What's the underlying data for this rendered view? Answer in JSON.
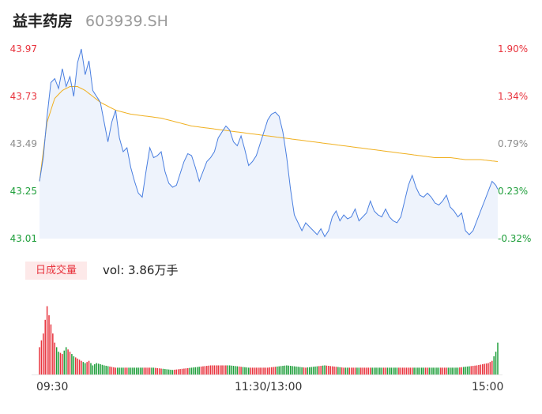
{
  "header": {
    "name": "益丰药房",
    "code": "603939.SH"
  },
  "axis": {
    "price_ticks": [
      "43.97",
      "43.73",
      "43.49",
      "43.25",
      "43.01"
    ],
    "pct_ticks": [
      "1.90%",
      "1.34%",
      "0.79%",
      "0.23%",
      "-0.32%"
    ],
    "time_ticks": [
      "09:30",
      "11:30/13:00",
      "15:00"
    ]
  },
  "volume_panel": {
    "tag": "日成交量",
    "vol_text": "vol: 3.86万手"
  },
  "colors": {
    "up": "#e8333d",
    "down": "#1e9e3a",
    "price": "#4a7fe0",
    "avg": "#f0b020",
    "fill": "#eef3fc"
  },
  "chart_data": {
    "type": "line",
    "ylim": [
      43.01,
      43.97
    ],
    "x_count": 242,
    "price_keys": [
      [
        0,
        43.3
      ],
      [
        2,
        43.42
      ],
      [
        4,
        43.63
      ],
      [
        6,
        43.8
      ],
      [
        8,
        43.82
      ],
      [
        10,
        43.77
      ],
      [
        12,
        43.87
      ],
      [
        14,
        43.78
      ],
      [
        16,
        43.83
      ],
      [
        18,
        43.73
      ],
      [
        20,
        43.9
      ],
      [
        22,
        43.97
      ],
      [
        24,
        43.84
      ],
      [
        26,
        43.91
      ],
      [
        28,
        43.76
      ],
      [
        30,
        43.73
      ],
      [
        32,
        43.7
      ],
      [
        34,
        43.6
      ],
      [
        36,
        43.5
      ],
      [
        38,
        43.6
      ],
      [
        40,
        43.66
      ],
      [
        42,
        43.52
      ],
      [
        44,
        43.45
      ],
      [
        46,
        43.47
      ],
      [
        48,
        43.37
      ],
      [
        50,
        43.3
      ],
      [
        52,
        43.24
      ],
      [
        54,
        43.22
      ],
      [
        56,
        43.35
      ],
      [
        58,
        43.47
      ],
      [
        60,
        43.42
      ],
      [
        62,
        43.43
      ],
      [
        64,
        43.45
      ],
      [
        66,
        43.35
      ],
      [
        68,
        43.29
      ],
      [
        70,
        43.27
      ],
      [
        72,
        43.28
      ],
      [
        74,
        43.34
      ],
      [
        76,
        43.4
      ],
      [
        78,
        43.44
      ],
      [
        80,
        43.43
      ],
      [
        82,
        43.37
      ],
      [
        84,
        43.3
      ],
      [
        86,
        43.35
      ],
      [
        88,
        43.4
      ],
      [
        90,
        43.42
      ],
      [
        92,
        43.45
      ],
      [
        94,
        43.52
      ],
      [
        96,
        43.55
      ],
      [
        98,
        43.58
      ],
      [
        100,
        43.56
      ],
      [
        102,
        43.5
      ],
      [
        104,
        43.48
      ],
      [
        106,
        43.53
      ],
      [
        108,
        43.46
      ],
      [
        110,
        43.38
      ],
      [
        112,
        43.4
      ],
      [
        114,
        43.43
      ],
      [
        116,
        43.49
      ],
      [
        118,
        43.55
      ],
      [
        120,
        43.61
      ],
      [
        122,
        43.64
      ],
      [
        124,
        43.65
      ],
      [
        126,
        43.63
      ],
      [
        128,
        43.55
      ],
      [
        130,
        43.42
      ],
      [
        132,
        43.26
      ],
      [
        134,
        43.13
      ],
      [
        136,
        43.09
      ],
      [
        138,
        43.05
      ],
      [
        140,
        43.09
      ],
      [
        142,
        43.07
      ],
      [
        144,
        43.05
      ],
      [
        146,
        43.03
      ],
      [
        148,
        43.06
      ],
      [
        150,
        43.02
      ],
      [
        152,
        43.05
      ],
      [
        154,
        43.12
      ],
      [
        156,
        43.15
      ],
      [
        158,
        43.1
      ],
      [
        160,
        43.13
      ],
      [
        162,
        43.11
      ],
      [
        164,
        43.12
      ],
      [
        166,
        43.16
      ],
      [
        168,
        43.1
      ],
      [
        170,
        43.12
      ],
      [
        172,
        43.14
      ],
      [
        174,
        43.2
      ],
      [
        176,
        43.15
      ],
      [
        178,
        43.13
      ],
      [
        180,
        43.12
      ],
      [
        182,
        43.16
      ],
      [
        184,
        43.12
      ],
      [
        186,
        43.1
      ],
      [
        188,
        43.09
      ],
      [
        190,
        43.12
      ],
      [
        192,
        43.2
      ],
      [
        194,
        43.28
      ],
      [
        196,
        43.33
      ],
      [
        198,
        43.27
      ],
      [
        200,
        43.23
      ],
      [
        202,
        43.22
      ],
      [
        204,
        43.24
      ],
      [
        206,
        43.22
      ],
      [
        208,
        43.19
      ],
      [
        210,
        43.18
      ],
      [
        212,
        43.2
      ],
      [
        214,
        43.23
      ],
      [
        216,
        43.17
      ],
      [
        218,
        43.15
      ],
      [
        220,
        43.12
      ],
      [
        222,
        43.14
      ],
      [
        224,
        43.05
      ],
      [
        226,
        43.03
      ],
      [
        228,
        43.05
      ],
      [
        230,
        43.1
      ],
      [
        232,
        43.15
      ],
      [
        234,
        43.2
      ],
      [
        236,
        43.25
      ],
      [
        238,
        43.3
      ],
      [
        240,
        43.28
      ],
      [
        241,
        43.26
      ]
    ],
    "avg_keys": [
      [
        0,
        43.3
      ],
      [
        4,
        43.6
      ],
      [
        8,
        43.72
      ],
      [
        12,
        43.76
      ],
      [
        16,
        43.78
      ],
      [
        20,
        43.78
      ],
      [
        24,
        43.76
      ],
      [
        28,
        43.73
      ],
      [
        32,
        43.7
      ],
      [
        36,
        43.68
      ],
      [
        40,
        43.66
      ],
      [
        48,
        43.64
      ],
      [
        56,
        43.63
      ],
      [
        64,
        43.62
      ],
      [
        72,
        43.6
      ],
      [
        80,
        43.58
      ],
      [
        88,
        43.57
      ],
      [
        96,
        43.56
      ],
      [
        104,
        43.55
      ],
      [
        112,
        43.54
      ],
      [
        120,
        43.53
      ],
      [
        128,
        43.52
      ],
      [
        136,
        43.51
      ],
      [
        144,
        43.5
      ],
      [
        152,
        43.49
      ],
      [
        160,
        43.48
      ],
      [
        168,
        43.47
      ],
      [
        176,
        43.46
      ],
      [
        184,
        43.45
      ],
      [
        192,
        43.44
      ],
      [
        200,
        43.43
      ],
      [
        208,
        43.42
      ],
      [
        216,
        43.42
      ],
      [
        224,
        43.41
      ],
      [
        232,
        43.41
      ],
      [
        241,
        43.4
      ]
    ],
    "volume_keys": [
      [
        0,
        12
      ],
      [
        2,
        18
      ],
      [
        4,
        30
      ],
      [
        6,
        22
      ],
      [
        8,
        14
      ],
      [
        10,
        10
      ],
      [
        12,
        9
      ],
      [
        14,
        12
      ],
      [
        16,
        10
      ],
      [
        18,
        8
      ],
      [
        20,
        7
      ],
      [
        22,
        6
      ],
      [
        24,
        5
      ],
      [
        26,
        6
      ],
      [
        28,
        4
      ],
      [
        30,
        5
      ],
      [
        34,
        4
      ],
      [
        40,
        3
      ],
      [
        50,
        3
      ],
      [
        60,
        3
      ],
      [
        70,
        2
      ],
      [
        80,
        3
      ],
      [
        90,
        4
      ],
      [
        100,
        4
      ],
      [
        110,
        3
      ],
      [
        120,
        3
      ],
      [
        130,
        4
      ],
      [
        140,
        3
      ],
      [
        150,
        4
      ],
      [
        160,
        3
      ],
      [
        170,
        3
      ],
      [
        180,
        3
      ],
      [
        190,
        3
      ],
      [
        200,
        3
      ],
      [
        210,
        3
      ],
      [
        220,
        3
      ],
      [
        230,
        4
      ],
      [
        236,
        5
      ],
      [
        238,
        6
      ],
      [
        240,
        10
      ],
      [
        241,
        14
      ]
    ],
    "volume_max": 34
  }
}
